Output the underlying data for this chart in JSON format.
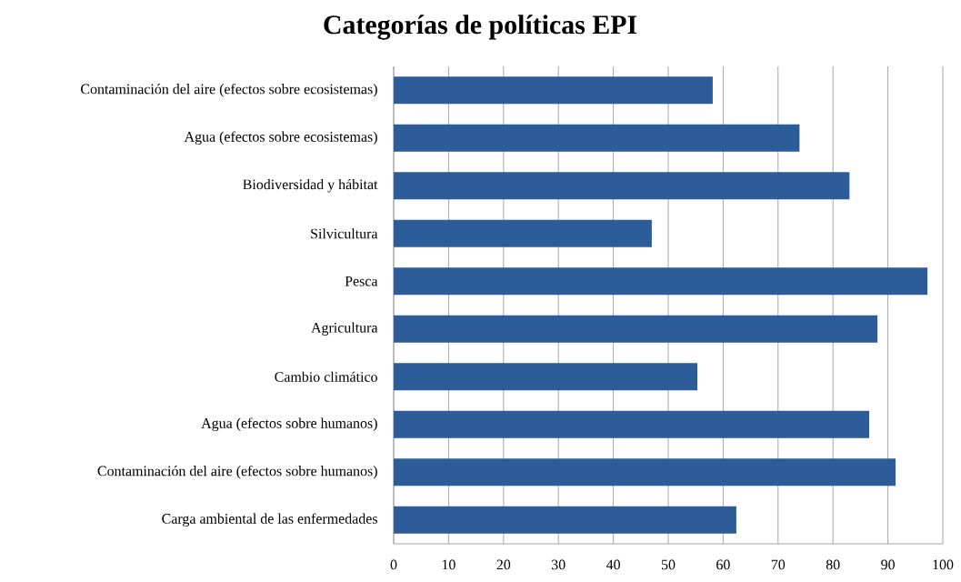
{
  "chart_data": {
    "type": "bar",
    "orientation": "horizontal",
    "title": "Categorías de políticas EPI",
    "categories": [
      "Contaminación del aire (efectos sobre ecosistemas)",
      "Agua (efectos sobre ecosistemas)",
      "Biodiversidad y hábitat",
      "Silvicultura",
      "Pesca",
      "Agricultura",
      "Cambio climático",
      "Agua (efectos sobre humanos)",
      "Contaminación del aire (efectos sobre humanos)",
      "Carga ambiental de las enfermedades"
    ],
    "values": [
      58.1,
      73.9,
      83.0,
      47.0,
      97.2,
      88.1,
      55.3,
      86.6,
      91.4,
      62.4
    ],
    "color": "#2c5d98",
    "xlim": [
      0,
      100
    ],
    "xticks": [
      0,
      10,
      20,
      30,
      40,
      50,
      60,
      70,
      80,
      90,
      100
    ],
    "grid": "x"
  }
}
